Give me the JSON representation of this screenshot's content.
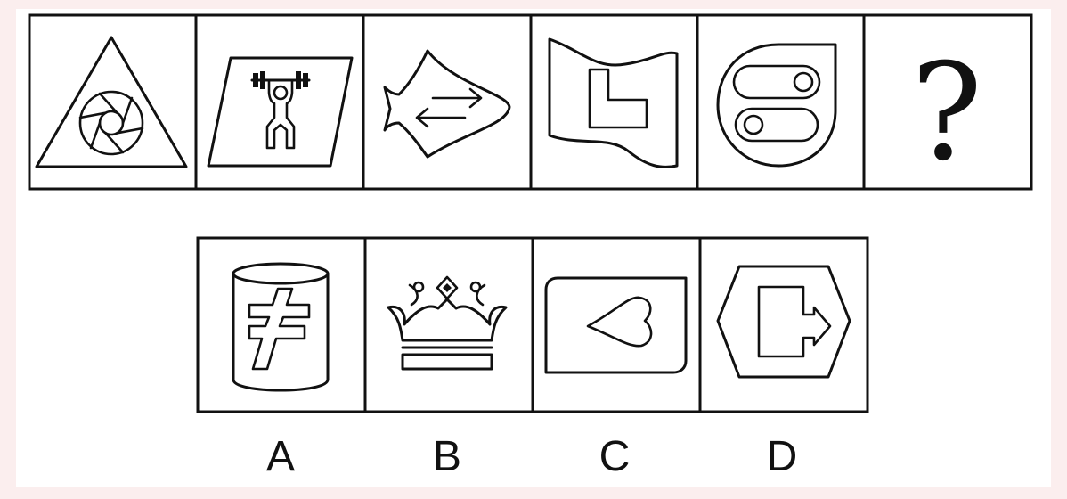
{
  "question_row": {
    "cells": [
      {
        "icon": "aperture-in-triangle-icon"
      },
      {
        "icon": "weightlifter-in-parallelogram-icon"
      },
      {
        "icon": "arrows-in-spade-icon"
      },
      {
        "icon": "l-shape-in-flag-icon"
      },
      {
        "icon": "toggles-in-drop-icon"
      },
      {
        "icon": "question-mark",
        "text": "?"
      }
    ]
  },
  "options": [
    {
      "label": "A",
      "icon": "not-equal-in-cylinder-icon"
    },
    {
      "label": "B",
      "icon": "crown-icon"
    },
    {
      "label": "C",
      "icon": "heart-in-card-icon"
    },
    {
      "label": "D",
      "icon": "arrow-box-in-hexagon-icon"
    }
  ]
}
